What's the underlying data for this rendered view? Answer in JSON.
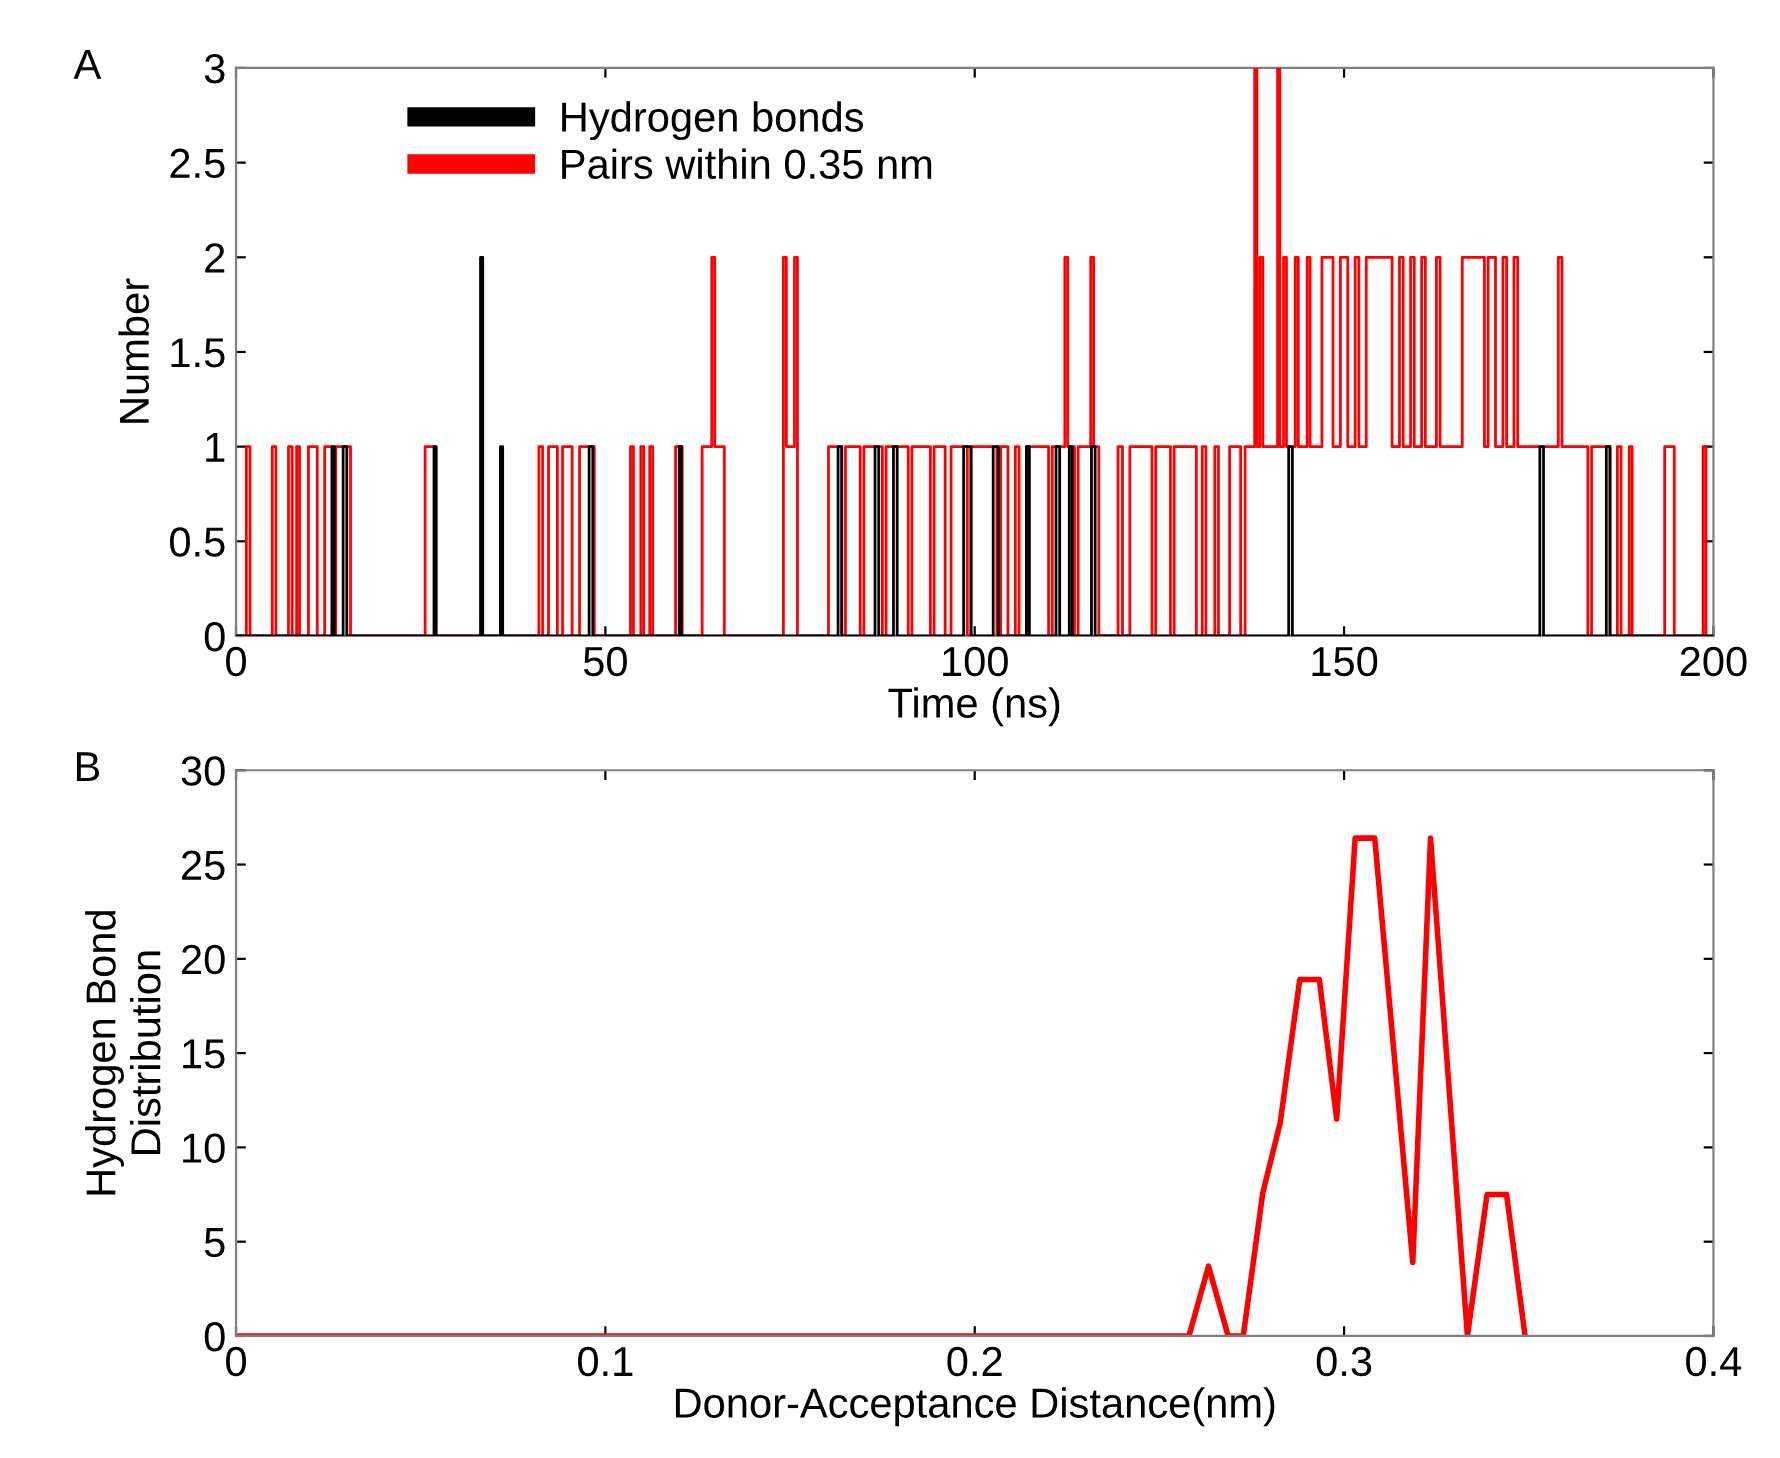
{
  "chart_data": [
    {
      "type": "step",
      "xlabel": "Time (ns)",
      "ylabel": "Number",
      "annotations": [
        "A"
      ],
      "xlim": [
        0,
        200
      ],
      "xticks": [
        0,
        50,
        100,
        150,
        200
      ],
      "ylim": [
        0,
        3
      ],
      "yticks": [
        0,
        0.5,
        1,
        1.5,
        2,
        2.5,
        3
      ],
      "legend": "top left",
      "grid": false,
      "series": [
        {
          "name": "Hydrogen bonds",
          "color": "#000000",
          "x": [
            0,
            13.0,
            13.3,
            14.5,
            15.0,
            26.8,
            27.1,
            33.1,
            33.4,
            35.8,
            36.1,
            47.8,
            48.3,
            60.0,
            60.3,
            81.5,
            82.0,
            86.5,
            87.0,
            89.0,
            89.5,
            98.5,
            99.5,
            102.5,
            103.2,
            107.0,
            107.4,
            111.0,
            111.5,
            112.8,
            113.2,
            115.8,
            116.3,
            142.5,
            143.0,
            176.5,
            177.0,
            185.5,
            186.0,
            200
          ],
          "values": [
            0,
            1,
            0,
            1,
            0,
            1,
            0,
            2,
            0,
            1,
            0,
            1,
            0,
            1,
            0,
            1,
            0,
            1,
            0,
            1,
            0,
            1,
            0,
            1,
            0,
            1,
            0,
            1,
            0,
            1,
            0,
            1,
            0,
            1,
            0,
            1,
            0,
            1,
            0,
            0
          ]
        },
        {
          "name": "Pairs within 0.35 nm",
          "color": "#ff0000",
          "x": [
            0,
            1.4,
            1.9,
            4.9,
            5.4,
            7.1,
            7.6,
            8.2,
            8.6,
            9.8,
            11.0,
            12.0,
            13.0,
            13.5,
            15.5,
            25.6,
            27.0,
            41.0,
            41.5,
            42.3,
            43.5,
            44.2,
            45.5,
            46.5,
            48.5,
            53.4,
            53.8,
            54.8,
            55.2,
            56.0,
            56.4,
            59.5,
            60.4,
            63.1,
            64.4,
            64.8,
            66.1,
            74.1,
            74.5,
            75.6,
            76.0,
            80.2,
            82.0,
            82.5,
            84.5,
            85.0,
            87.5,
            88.0,
            91.0,
            91.5,
            94.0,
            94.5,
            96.0,
            96.8,
            99.0,
            99.5,
            103.0,
            103.5,
            104.5,
            105.5,
            106.0,
            107.0,
            110.0,
            110.5,
            112.2,
            112.6,
            113.5,
            114.0,
            115.7,
            116.1,
            116.8,
            119.4,
            120.0,
            121.0,
            124.0,
            124.5,
            126.5,
            127.0,
            130.0,
            130.8,
            131.3,
            132.5,
            133.0,
            134.5,
            136.0,
            136.6,
            137.9,
            138.2,
            138.6,
            139.0,
            141.0,
            141.3,
            141.8,
            142.2,
            143.4,
            143.8,
            145.0,
            145.4,
            147.0,
            148.5,
            149.5,
            150.5,
            151.5,
            152.0,
            153.0,
            156.5,
            157.5,
            158.0,
            159.0,
            159.5,
            160.5,
            161.0,
            162.5,
            163.0,
            166.0,
            169.0,
            169.5,
            170.5,
            171.5,
            172.0,
            173.0,
            173.5,
            179.0,
            179.5,
            183.0,
            183.5,
            186.0,
            187.0,
            187.5,
            188.6,
            189.0,
            193.4,
            194.7,
            198.6,
            199.0
          ],
          "values": [
            0,
            1,
            0,
            1,
            0,
            1,
            0,
            1,
            0,
            1,
            0,
            1,
            0,
            1,
            0,
            1,
            0,
            1,
            0,
            1,
            0,
            1,
            0,
            1,
            0,
            1,
            0,
            1,
            0,
            1,
            0,
            1,
            0,
            1,
            2,
            1,
            0,
            2,
            1,
            2,
            0,
            1,
            0,
            1,
            0,
            1,
            0,
            1,
            0,
            1,
            0,
            1,
            0,
            1,
            0,
            1,
            0,
            1,
            0,
            1,
            0,
            1,
            0,
            1,
            2,
            1,
            0,
            1,
            2,
            1,
            0,
            1,
            0,
            1,
            0,
            1,
            0,
            1,
            0,
            1,
            0,
            1,
            0,
            1,
            0,
            1,
            3,
            1,
            2,
            1,
            3,
            1,
            2,
            1,
            2,
            1,
            2,
            1,
            2,
            1,
            2,
            1,
            2,
            1,
            2,
            1,
            2,
            1,
            2,
            1,
            2,
            1,
            2,
            1,
            2,
            1,
            2,
            1,
            2,
            1,
            2,
            1,
            2,
            1,
            0,
            1,
            0,
            1,
            0,
            1,
            0,
            1,
            0,
            1,
            0
          ]
        }
      ]
    },
    {
      "type": "line",
      "xlabel": "Donor-Acceptance Distance(nm)",
      "ylabel": "Hydrogen Bond\nDistribution",
      "annotations": [
        "B"
      ],
      "xlim": [
        0,
        0.4
      ],
      "xticks": [
        0,
        0.1,
        0.2,
        0.3,
        0.4
      ],
      "ylim": [
        0,
        30
      ],
      "yticks": [
        0,
        5,
        10,
        15,
        20,
        25,
        30
      ],
      "grid": false,
      "series": [
        {
          "color": "#ff0000",
          "x": [
            0,
            0.234,
            0.258,
            0.2633,
            0.2686,
            0.2727,
            0.278,
            0.2827,
            0.288,
            0.2933,
            0.298,
            0.303,
            0.3083,
            0.3186,
            0.3234,
            0.3334,
            0.3387,
            0.344,
            0.349
          ],
          "values": [
            0,
            0,
            0,
            3.7,
            0,
            0,
            7.6,
            11.3,
            18.9,
            18.9,
            11.5,
            26.4,
            26.4,
            3.9,
            26.4,
            0,
            7.5,
            7.5,
            0
          ]
        }
      ]
    }
  ]
}
